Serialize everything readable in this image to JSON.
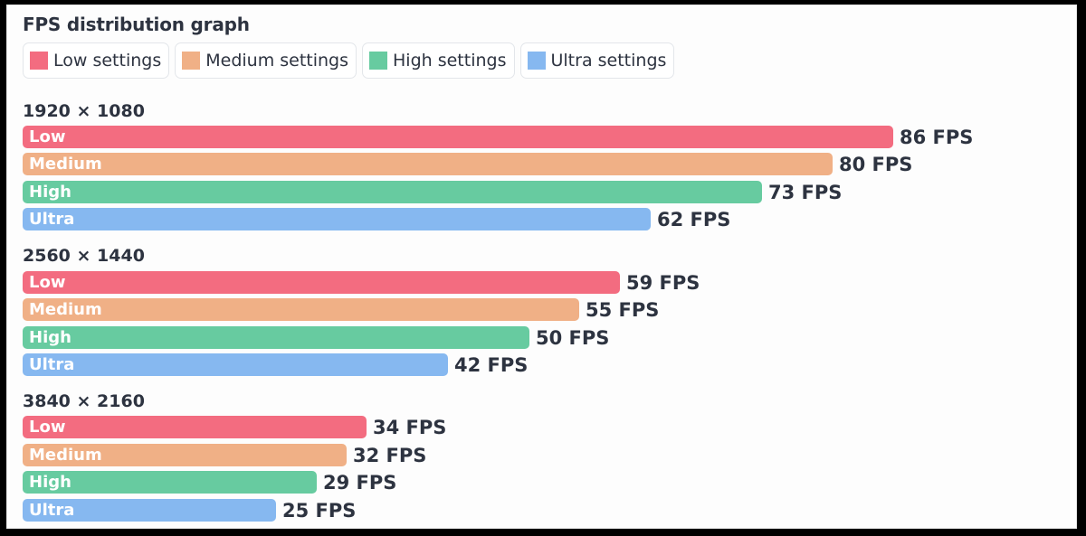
{
  "title": "FPS distribution graph",
  "legend": [
    {
      "label": "Low settings",
      "color": "#f36c80"
    },
    {
      "label": "Medium settings",
      "color": "#f0b086"
    },
    {
      "label": "High settings",
      "color": "#67cba0"
    },
    {
      "label": "Ultra settings",
      "color": "#86b8f0"
    }
  ],
  "groups": [
    {
      "label": "1920 × 1080",
      "bars": [
        {
          "label": "Low",
          "value": 86,
          "text": "86 FPS"
        },
        {
          "label": "Medium",
          "value": 80,
          "text": "80 FPS"
        },
        {
          "label": "High",
          "value": 73,
          "text": "73 FPS"
        },
        {
          "label": "Ultra",
          "value": 62,
          "text": "62 FPS"
        }
      ]
    },
    {
      "label": "2560 × 1440",
      "bars": [
        {
          "label": "Low",
          "value": 59,
          "text": "59 FPS"
        },
        {
          "label": "Medium",
          "value": 55,
          "text": "55 FPS"
        },
        {
          "label": "High",
          "value": 50,
          "text": "50 FPS"
        },
        {
          "label": "Ultra",
          "value": 42,
          "text": "42 FPS"
        }
      ]
    },
    {
      "label": "3840 × 2160",
      "bars": [
        {
          "label": "Low",
          "value": 34,
          "text": "34 FPS"
        },
        {
          "label": "Medium",
          "value": 32,
          "text": "32 FPS"
        },
        {
          "label": "High",
          "value": 29,
          "text": "29 FPS"
        },
        {
          "label": "Ultra",
          "value": 25,
          "text": "25 FPS"
        }
      ]
    }
  ],
  "chart_data": {
    "type": "bar",
    "orientation": "horizontal",
    "title": "FPS distribution graph",
    "categories": [
      "1920 × 1080",
      "2560 × 1440",
      "3840 × 2160"
    ],
    "series": [
      {
        "name": "Low settings",
        "color": "#f36c80",
        "values": [
          86,
          59,
          34
        ]
      },
      {
        "name": "Medium settings",
        "color": "#f0b086",
        "values": [
          80,
          55,
          32
        ]
      },
      {
        "name": "High settings",
        "color": "#67cba0",
        "values": [
          73,
          50,
          29
        ]
      },
      {
        "name": "Ultra settings",
        "color": "#86b8f0",
        "values": [
          62,
          42,
          25
        ]
      }
    ],
    "xlabel": "",
    "ylabel": "",
    "unit": "FPS",
    "grid": false,
    "legend_position": "top",
    "data_labels": true
  }
}
